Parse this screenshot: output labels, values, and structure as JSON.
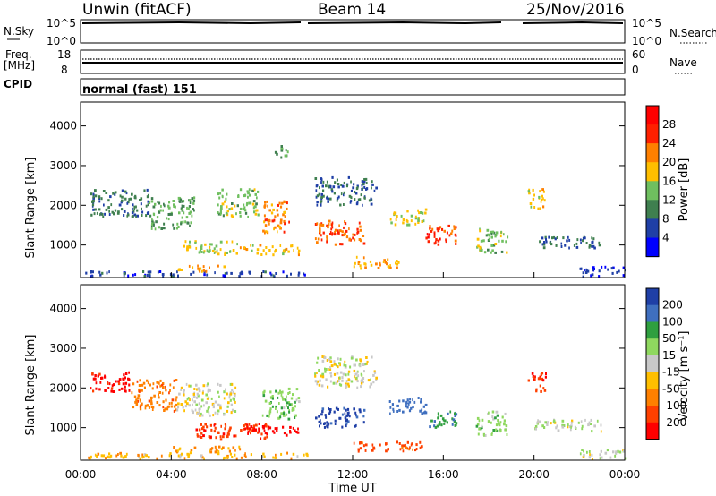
{
  "header": {
    "station": "Unwin (fitACF)",
    "beam": "Beam 14",
    "date": "25/Nov/2016"
  },
  "noise_panel": {
    "left_label": "N.Sky",
    "right_label": "N.Search",
    "left_ticks": [
      "10^5",
      "10^0"
    ],
    "right_ticks": [
      "10^5",
      "10^0"
    ]
  },
  "freq_panel": {
    "left_label_1": "Freq.",
    "left_label_2": "[MHz]",
    "right_label": "Nave",
    "left_ticks": [
      "18",
      "8"
    ],
    "right_ticks": [
      "60",
      "0"
    ]
  },
  "cpid_panel": {
    "label": "CPID",
    "mode_text": "normal (fast) 151"
  },
  "xaxis": {
    "label": "Time UT",
    "ticks": [
      "00:00",
      "04:00",
      "08:00",
      "12:00",
      "16:00",
      "20:00",
      "00:00"
    ]
  },
  "chart_data": [
    {
      "type": "heatmap",
      "name": "power",
      "ylabel": "Slant Range [km]",
      "yticks": [
        "1000",
        "2000",
        "3000",
        "4000"
      ],
      "ylim": [
        180,
        4600
      ],
      "colorbar_label": "Power [dB]",
      "colorbar_ticks": [
        "4",
        "8",
        "12",
        "16",
        "20",
        "24",
        "28"
      ],
      "colors": [
        "#0000ff",
        "#1f3fa6",
        "#3f7f4f",
        "#6fbf5f",
        "#ffbf00",
        "#ff8000",
        "#ff2000",
        "#ff0000"
      ],
      "x_hours": [
        0,
        24
      ],
      "regions": [
        {
          "t0": 0.1,
          "t1": 10.0,
          "r0": 200,
          "r1": 330,
          "v": 6
        },
        {
          "t0": 4.2,
          "t1": 6.5,
          "r0": 330,
          "r1": 480,
          "v": 20
        },
        {
          "t0": 0.4,
          "t1": 3.0,
          "r0": 1700,
          "r1": 2400,
          "v": 9
        },
        {
          "t0": 3.0,
          "t1": 5.0,
          "r0": 1400,
          "r1": 2200,
          "v": 12
        },
        {
          "t0": 4.5,
          "t1": 7.0,
          "r0": 750,
          "r1": 1100,
          "v": 16
        },
        {
          "t0": 7.0,
          "t1": 9.6,
          "r0": 750,
          "r1": 1000,
          "v": 18
        },
        {
          "t0": 8.0,
          "t1": 9.2,
          "r0": 1300,
          "r1": 2100,
          "v": 22
        },
        {
          "t0": 6.0,
          "t1": 7.8,
          "r0": 1700,
          "r1": 2400,
          "v": 14
        },
        {
          "t0": 8.5,
          "t1": 9.2,
          "r0": 3200,
          "r1": 3500,
          "v": 12
        },
        {
          "t0": 10.3,
          "t1": 12.5,
          "r0": 1000,
          "r1": 1600,
          "v": 24
        },
        {
          "t0": 10.3,
          "t1": 13.0,
          "r0": 2000,
          "r1": 2700,
          "v": 8
        },
        {
          "t0": 12.0,
          "t1": 14.0,
          "r0": 400,
          "r1": 700,
          "v": 20
        },
        {
          "t0": 13.6,
          "t1": 15.2,
          "r0": 1500,
          "r1": 1900,
          "v": 16
        },
        {
          "t0": 15.2,
          "t1": 16.6,
          "r0": 1000,
          "r1": 1500,
          "v": 26
        },
        {
          "t0": 17.4,
          "t1": 18.8,
          "r0": 800,
          "r1": 1400,
          "v": 14
        },
        {
          "t0": 19.7,
          "t1": 20.5,
          "r0": 1900,
          "r1": 2400,
          "v": 18
        },
        {
          "t0": 20.0,
          "t1": 23.0,
          "r0": 900,
          "r1": 1200,
          "v": 8
        },
        {
          "t0": 22.0,
          "t1": 24.0,
          "r0": 200,
          "r1": 450,
          "v": 5
        }
      ]
    },
    {
      "type": "heatmap",
      "name": "velocity",
      "ylabel": "Slant Range [km]",
      "yticks": [
        "1000",
        "2000",
        "3000",
        "4000"
      ],
      "ylim": [
        180,
        4600
      ],
      "colorbar_label": "Velocity [m s⁻¹]",
      "colorbar_ticks": [
        "200",
        "100",
        "50",
        "15",
        "-15",
        "-50",
        "-100",
        "-200"
      ],
      "colors": [
        "#1f3fa6",
        "#3f6fbf",
        "#2f9f3f",
        "#8fd85f",
        "#c8c8c8",
        "#ffbf00",
        "#ff8000",
        "#ff4000",
        "#ff0000"
      ],
      "x_hours": [
        0,
        24
      ],
      "regions": [
        {
          "t0": 0.2,
          "t1": 10.0,
          "r0": 220,
          "r1": 360,
          "v": -40
        },
        {
          "t0": 4.0,
          "t1": 7.0,
          "r0": 360,
          "r1": 520,
          "v": -60
        },
        {
          "t0": 0.4,
          "t1": 2.2,
          "r0": 1900,
          "r1": 2400,
          "v": -220
        },
        {
          "t0": 2.2,
          "t1": 4.2,
          "r0": 1400,
          "r1": 2200,
          "v": -80
        },
        {
          "t0": 4.2,
          "t1": 6.8,
          "r0": 1300,
          "r1": 2100,
          "v": 0
        },
        {
          "t0": 5.0,
          "t1": 8.2,
          "r0": 700,
          "r1": 1100,
          "v": -180
        },
        {
          "t0": 7.0,
          "t1": 9.6,
          "r0": 800,
          "r1": 1050,
          "v": -240
        },
        {
          "t0": 8.0,
          "t1": 9.6,
          "r0": 1200,
          "r1": 2000,
          "v": 40
        },
        {
          "t0": 10.3,
          "t1": 12.5,
          "r0": 1000,
          "r1": 1500,
          "v": 220
        },
        {
          "t0": 10.3,
          "t1": 13.0,
          "r0": 2000,
          "r1": 2800,
          "v": 0
        },
        {
          "t0": 12.0,
          "t1": 15.0,
          "r0": 400,
          "r1": 650,
          "v": -120
        },
        {
          "t0": 13.6,
          "t1": 15.2,
          "r0": 1350,
          "r1": 1750,
          "v": 150
        },
        {
          "t0": 15.2,
          "t1": 16.6,
          "r0": 1000,
          "r1": 1400,
          "v": 80
        },
        {
          "t0": 17.4,
          "t1": 18.8,
          "r0": 800,
          "r1": 1400,
          "v": 30
        },
        {
          "t0": 19.7,
          "t1": 20.5,
          "r0": 1900,
          "r1": 2400,
          "v": -200
        },
        {
          "t0": 20.0,
          "t1": 23.0,
          "r0": 900,
          "r1": 1200,
          "v": 0
        },
        {
          "t0": 22.0,
          "t1": 24.0,
          "r0": 200,
          "r1": 450,
          "v": 10
        }
      ]
    }
  ]
}
